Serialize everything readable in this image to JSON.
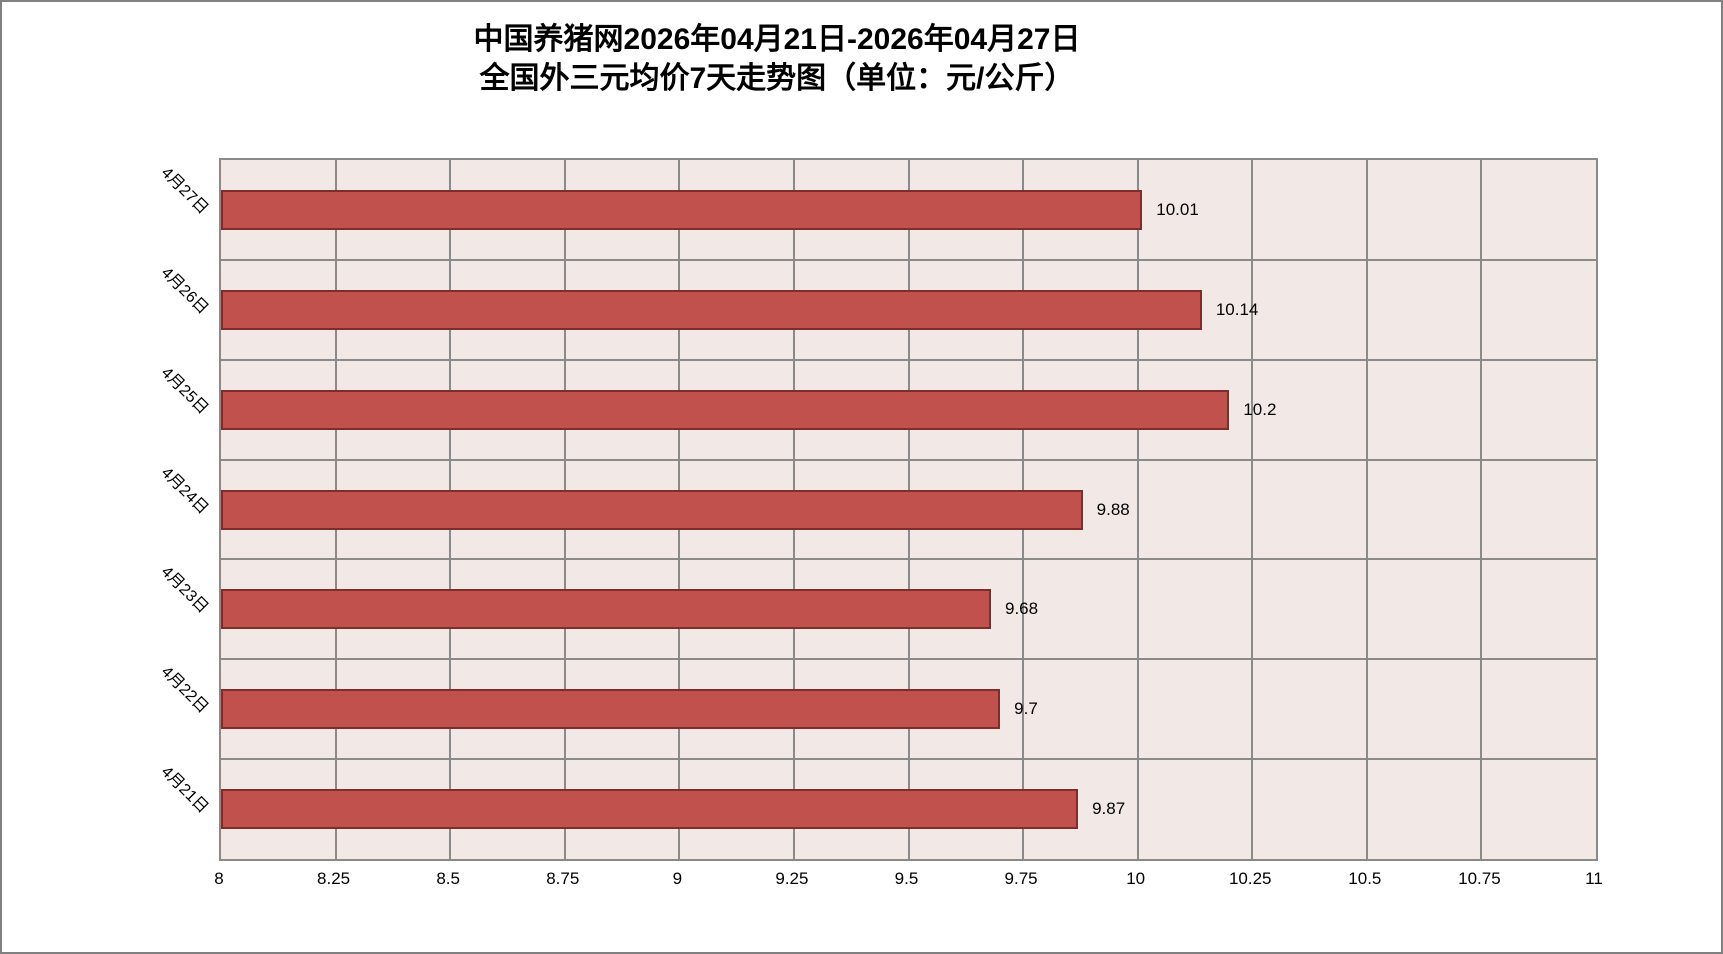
{
  "title": {
    "line1": "中国养猪网2026年04月21日-2026年04月27日",
    "line2": "全国外三元均价7天走势图（单位：元/公斤）"
  },
  "chart_data": {
    "type": "bar",
    "orientation": "horizontal",
    "title": "中国养猪网2026年04月21日-2026年04月27日 全国外三元均价7天走势图（单位：元/公斤）",
    "unit": "元/公斤",
    "categories": [
      "4月27日",
      "4月26日",
      "4月25日",
      "4月24日",
      "4月23日",
      "4月22日",
      "4月21日"
    ],
    "series": [
      {
        "name": "全国外三元均价",
        "values": [
          10.01,
          10.14,
          10.2,
          9.88,
          9.68,
          9.7,
          9.87
        ],
        "value_labels": [
          "10.01",
          "10.14",
          "10.2",
          "9.88",
          "9.68",
          "9.7",
          "9.87"
        ]
      }
    ],
    "xlim": [
      8,
      11
    ],
    "x_ticks": [
      8,
      8.25,
      8.5,
      8.75,
      9,
      9.25,
      9.5,
      9.75,
      10,
      10.25,
      10.5,
      10.75,
      11
    ],
    "x_tick_labels": [
      "8",
      "8.25",
      "8.5",
      "8.75",
      "9",
      "9.25",
      "9.5",
      "9.75",
      "10",
      "10.25",
      "10.5",
      "10.75",
      "11"
    ],
    "grid": true,
    "legend": "none",
    "colors": {
      "bar_fill": "#c0514d",
      "bar_border": "#7f2d2a",
      "plot_background": "#f2e9e7",
      "gridline": "#8a8a8a",
      "frame_border": "#808080",
      "text": "#000000"
    }
  }
}
